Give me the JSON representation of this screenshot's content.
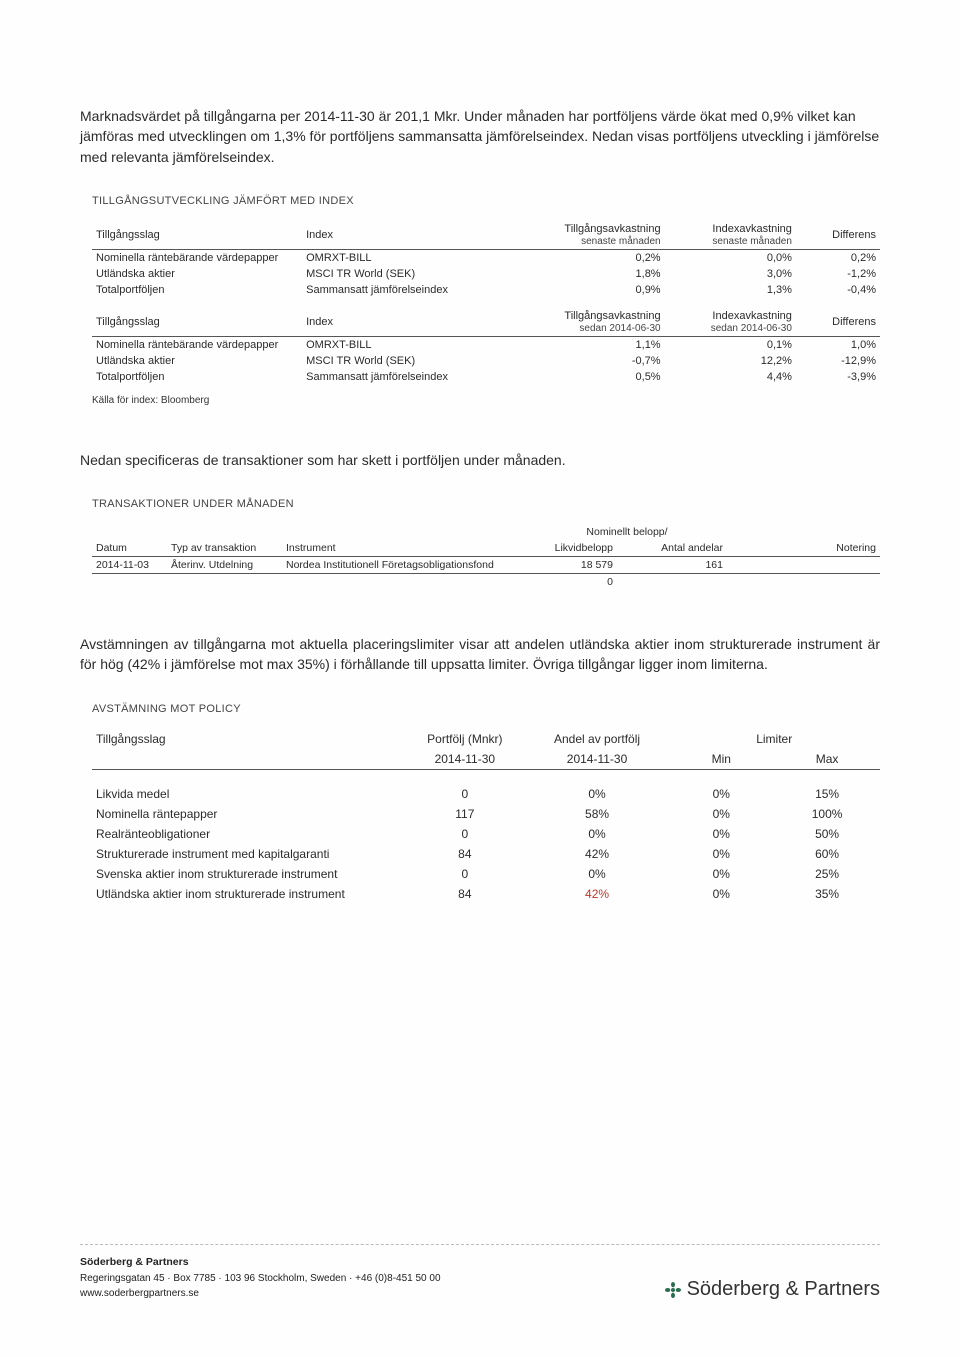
{
  "intro_text": "Marknadsvärdet på tillgångarna per 2014-11-30 är 201,1 Mkr. Under månaden har portföljens värde ökat med 0,9% vilket kan jämföras med utvecklingen om 1,3% för portföljens sammansatta jämförelseindex. Nedan visas portföljens utveckling i jämförelse med relevanta jämförelseindex.",
  "section1": {
    "title": "TILLGÅNGSUTVECKLING JÄMFÖRT MED INDEX",
    "headersA": {
      "h1": "Tillgångsslag",
      "h2": "Index",
      "h3a": "Tillgångsavkastning",
      "h3b": "senaste månaden",
      "h4a": "Indexavkastning",
      "h4b": "senaste månaden",
      "h5": "Differens"
    },
    "rowsA": [
      {
        "asset": "Nominella räntebärande värdepapper",
        "idx": "OMRXT-BILL",
        "r": "0,2%",
        "i": "0,0%",
        "d": "0,2%"
      },
      {
        "asset": "Utländska aktier",
        "idx": "MSCI TR World (SEK)",
        "r": "1,8%",
        "i": "3,0%",
        "d": "-1,2%"
      },
      {
        "asset": "Totalportföljen",
        "idx": "Sammansatt jämförelseindex",
        "r": "0,9%",
        "i": "1,3%",
        "d": "-0,4%"
      }
    ],
    "headersB": {
      "h1": "Tillgångsslag",
      "h2": "Index",
      "h3a": "Tillgångsavkastning",
      "h3b": "sedan 2014-06-30",
      "h4a": "Indexavkastning",
      "h4b": "sedan 2014-06-30",
      "h5": "Differens"
    },
    "rowsB": [
      {
        "asset": "Nominella räntebärande värdepapper",
        "idx": "OMRXT-BILL",
        "r": "1,1%",
        "i": "0,1%",
        "d": "1,0%"
      },
      {
        "asset": "Utländska aktier",
        "idx": "MSCI TR World (SEK)",
        "r": "-0,7%",
        "i": "12,2%",
        "d": "-12,9%"
      },
      {
        "asset": "Totalportföljen",
        "idx": "Sammansatt jämförelseindex",
        "r": "0,5%",
        "i": "4,4%",
        "d": "-3,9%"
      }
    ],
    "source": "Källa för index: Bloomberg"
  },
  "mid_text": "Nedan specificeras de transaktioner som har skett i portföljen under månaden.",
  "section2": {
    "title": "TRANSAKTIONER UNDER MÅNADEN",
    "head_top": "Nominellt belopp/",
    "cols": {
      "c1": "Datum",
      "c2": "Typ av transaktion",
      "c3": "Instrument",
      "c4": "Likvidbelopp",
      "c5": "Antal andelar",
      "c6": "Notering"
    },
    "rows": [
      {
        "d": "2014-11-03",
        "t": "Återinv. Utdelning",
        "ins": "Nordea Institutionell Företagsobligationsfond",
        "amt": "18 579",
        "shares": "161",
        "note": ""
      }
    ],
    "totals": {
      "amt": "0"
    }
  },
  "mid_text2": "Avstämningen av tillgångarna mot aktuella placeringslimiter visar att andelen utländska aktier inom strukturerade instrument är för hög (42% i jämförelse mot max 35%) i förhållande till uppsatta limiter. Övriga tillgångar ligger inom limiterna.",
  "section3": {
    "title": "AVSTÄMNING MOT POLICY",
    "head": {
      "h1": "Tillgångsslag",
      "h2a": "Portfölj (Mnkr)",
      "h2b": "2014-11-30",
      "h3a": "Andel av portfölj",
      "h3b": "2014-11-30",
      "h4": "Limiter",
      "h4a": "Min",
      "h4b": "Max"
    },
    "rows": [
      {
        "a": "Likvida medel",
        "p": "0",
        "s": "0%",
        "min": "0%",
        "max": "15%",
        "flag": false
      },
      {
        "a": "Nominella räntepapper",
        "p": "117",
        "s": "58%",
        "min": "0%",
        "max": "100%",
        "flag": false
      },
      {
        "a": "Realränteobligationer",
        "p": "0",
        "s": "0%",
        "min": "0%",
        "max": "50%",
        "flag": false
      },
      {
        "a": "Strukturerade instrument med kapitalgaranti",
        "p": "84",
        "s": "42%",
        "min": "0%",
        "max": "60%",
        "flag": false
      },
      {
        "a": "Svenska aktier inom strukturerade instrument",
        "p": "0",
        "s": "0%",
        "min": "0%",
        "max": "25%",
        "flag": false
      },
      {
        "a": "Utländska aktier inom strukturerade instrument",
        "p": "84",
        "s": "42%",
        "min": "0%",
        "max": "35%",
        "flag": true
      }
    ]
  },
  "footer": {
    "name": "Söderberg & Partners",
    "addr": "Regeringsgatan 45 · Box 7785 · 103 96 Stockholm, Sweden · +46 (0)8-451 50 00",
    "web": "www.soderbergpartners.se",
    "brand": "Söderberg & Partners"
  }
}
